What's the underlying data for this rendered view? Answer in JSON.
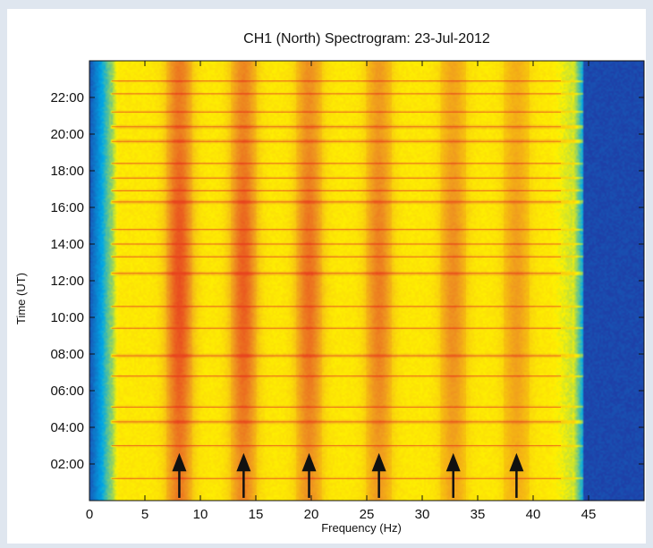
{
  "chart_data": {
    "type": "heatmap",
    "title": "CH1 (North) Spectrogram: 23-Jul-2012",
    "xlabel": "Frequency (Hz)",
    "ylabel": "Time (UT)",
    "xlim": [
      0,
      50
    ],
    "ylim": [
      0,
      24
    ],
    "x_ticks": [
      0,
      5,
      10,
      15,
      20,
      25,
      30,
      35,
      40,
      45
    ],
    "x_tick_labels": [
      "0",
      "5",
      "10",
      "15",
      "20",
      "25",
      "30",
      "35",
      "40",
      "45"
    ],
    "y_ticks": [
      2,
      4,
      6,
      8,
      10,
      12,
      14,
      16,
      18,
      20,
      22
    ],
    "y_tick_labels": [
      "02:00",
      "04:00",
      "06:00",
      "08:00",
      "10:00",
      "12:00",
      "14:00",
      "16:00",
      "18:00",
      "20:00",
      "22:00"
    ],
    "grid": false,
    "colormap": [
      "#1e40a8",
      "#00a8e6",
      "#fff200",
      "#f0a020",
      "#e84a20"
    ],
    "schumann_resonance_peaks_hz": [
      8.1,
      13.9,
      19.8,
      26.1,
      32.8,
      38.5
    ],
    "arrow_marker_frequencies_hz": [
      8.1,
      13.9,
      19.8,
      26.1,
      32.8,
      38.5
    ],
    "spectral_band_edges_hz": {
      "low_cutoff": 2.0,
      "high_cutoff": 44.5
    },
    "interference_line_times_ut": [
      1.2,
      3.0,
      4.3,
      5.1,
      6.8,
      7.9,
      9.4,
      10.6,
      12.4,
      13.3,
      14.0,
      14.8,
      16.3,
      16.9,
      17.6,
      18.4,
      19.6,
      20.4,
      21.2,
      22.2,
      22.9
    ]
  }
}
